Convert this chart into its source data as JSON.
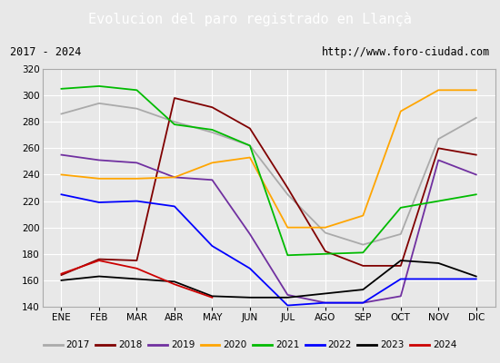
{
  "title": "Evolucion del paro registrado en Llançà",
  "subtitle_left": "2017 - 2024",
  "subtitle_right": "http://www.foro-ciudad.com",
  "xlabel_months": [
    "ENE",
    "FEB",
    "MAR",
    "ABR",
    "MAY",
    "JUN",
    "JUL",
    "AGO",
    "SEP",
    "OCT",
    "NOV",
    "DIC"
  ],
  "ylim": [
    140,
    320
  ],
  "yticks": [
    140,
    160,
    180,
    200,
    220,
    240,
    260,
    280,
    300,
    320
  ],
  "series": {
    "2017": {
      "color": "#aaaaaa",
      "data": [
        286,
        294,
        290,
        280,
        272,
        262,
        225,
        196,
        187,
        195,
        267,
        283
      ]
    },
    "2018": {
      "color": "#800000",
      "data": [
        164,
        176,
        175,
        298,
        291,
        275,
        230,
        182,
        171,
        171,
        260,
        255
      ]
    },
    "2019": {
      "color": "#7030a0",
      "data": [
        255,
        251,
        249,
        238,
        236,
        195,
        149,
        143,
        143,
        148,
        251,
        240
      ]
    },
    "2020": {
      "color": "#ffa500",
      "data": [
        240,
        237,
        237,
        238,
        249,
        253,
        200,
        200,
        209,
        288,
        304,
        304
      ]
    },
    "2021": {
      "color": "#00bb00",
      "data": [
        305,
        307,
        304,
        278,
        274,
        262,
        179,
        180,
        181,
        215,
        220,
        225
      ]
    },
    "2022": {
      "color": "#0000ff",
      "data": [
        225,
        219,
        220,
        216,
        186,
        169,
        141,
        143,
        143,
        161,
        161,
        161
      ]
    },
    "2023": {
      "color": "#000000",
      "data": [
        160,
        163,
        161,
        159,
        148,
        147,
        147,
        150,
        153,
        175,
        173,
        163
      ]
    },
    "2024": {
      "color": "#cc0000",
      "data": [
        165,
        175,
        169,
        157,
        147,
        null,
        null,
        null,
        null,
        null,
        null,
        null
      ]
    }
  },
  "background_color": "#e8e8e8",
  "plot_bg_color": "#e8e8e8",
  "header_bg_color": "#4a90d9",
  "grid_color": "#ffffff"
}
